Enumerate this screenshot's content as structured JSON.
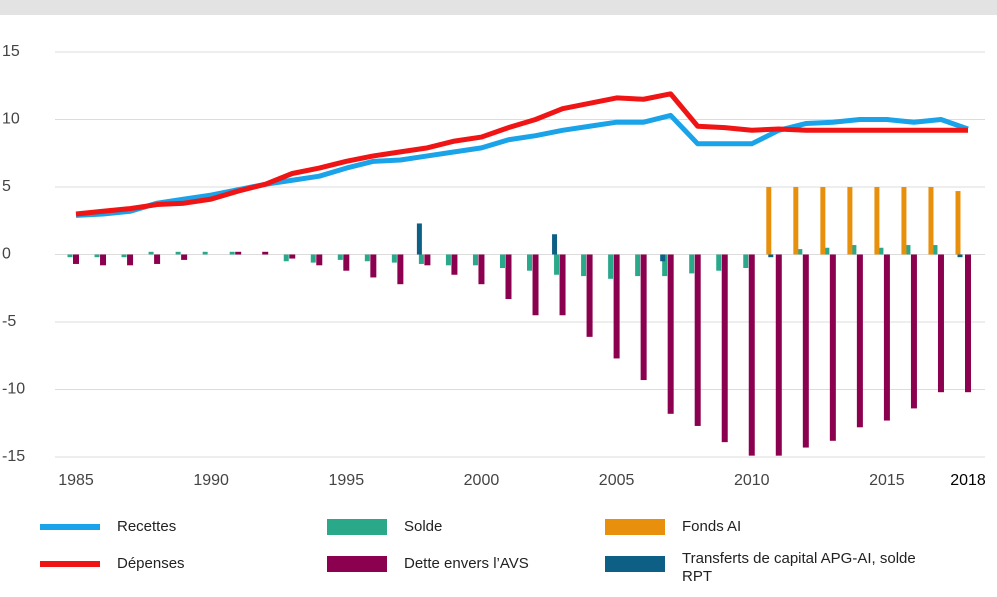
{
  "chart_data": {
    "type": "bar-line",
    "categories": [
      1985,
      1986,
      1987,
      1988,
      1989,
      1990,
      1991,
      1992,
      1993,
      1994,
      1995,
      1996,
      1997,
      1998,
      1999,
      2000,
      2001,
      2002,
      2003,
      2004,
      2005,
      2006,
      2007,
      2008,
      2009,
      2010,
      2011,
      2012,
      2013,
      2014,
      2015,
      2016,
      2017,
      2018
    ],
    "xlim": [
      1985,
      2018
    ],
    "xticks": [
      1985,
      1990,
      1995,
      2000,
      2005,
      2010,
      2015,
      2018
    ],
    "ylim": [
      -15,
      15
    ],
    "yticks": [
      -15,
      -10,
      -5,
      0,
      5,
      10,
      15
    ],
    "grid": true,
    "legend": "bottom",
    "series": [
      {
        "name": "Recettes",
        "kind": "line",
        "color": "#1aa3e8",
        "values": [
          2.9,
          3.0,
          3.2,
          3.8,
          4.1,
          4.4,
          4.8,
          5.2,
          5.5,
          5.8,
          6.4,
          6.9,
          7.0,
          7.3,
          7.6,
          7.9,
          8.5,
          8.8,
          9.2,
          9.5,
          9.8,
          9.8,
          10.3,
          8.2,
          8.2,
          8.2,
          9.2,
          9.7,
          9.8,
          10.0,
          10.0,
          9.8,
          10.0,
          9.3
        ]
      },
      {
        "name": "Dépenses",
        "kind": "line",
        "color": "#f01414",
        "values": [
          3.0,
          3.2,
          3.4,
          3.7,
          3.8,
          4.1,
          4.7,
          5.2,
          6.0,
          6.4,
          6.9,
          7.3,
          7.6,
          7.9,
          8.4,
          8.7,
          9.4,
          10.0,
          10.8,
          11.2,
          11.6,
          11.5,
          11.9,
          9.5,
          9.4,
          9.2,
          9.3,
          9.2,
          9.2,
          9.2,
          9.2,
          9.2,
          9.2,
          9.2
        ]
      },
      {
        "name": "Solde",
        "kind": "bar",
        "color": "#2aa88a",
        "values": [
          -0.2,
          -0.2,
          -0.2,
          0.2,
          0.2,
          0.2,
          0.2,
          0,
          -0.5,
          -0.6,
          -0.4,
          -0.5,
          -0.6,
          -0.7,
          -0.8,
          -0.8,
          -1.0,
          -1.2,
          -1.5,
          -1.6,
          -1.8,
          -1.6,
          -1.6,
          -1.4,
          -1.2,
          -1.0,
          0,
          0.4,
          0.5,
          0.7,
          0.5,
          0.7,
          0.7,
          0
        ]
      },
      {
        "name": "Dette envers l’AVS",
        "kind": "bar",
        "color": "#8c0050",
        "values": [
          -0.7,
          -0.8,
          -0.8,
          -0.7,
          -0.4,
          0,
          0.2,
          0.2,
          -0.3,
          -0.8,
          -1.2,
          -1.7,
          -2.2,
          -0.8,
          -1.5,
          -2.2,
          -3.3,
          -4.5,
          -4.5,
          -6.1,
          -7.7,
          -9.3,
          -11.8,
          -12.7,
          -13.9,
          -14.9,
          -14.9,
          -14.3,
          -13.8,
          -12.8,
          -12.3,
          -11.4,
          -10.2,
          -10.2
        ]
      },
      {
        "name": "Fonds AI",
        "kind": "bar",
        "color": "#e8900c",
        "values": [
          null,
          null,
          null,
          null,
          null,
          null,
          null,
          null,
          null,
          null,
          null,
          null,
          null,
          null,
          null,
          null,
          null,
          null,
          null,
          null,
          null,
          null,
          null,
          null,
          null,
          null,
          5,
          5,
          5,
          5,
          5,
          5,
          5,
          4.7
        ]
      },
      {
        "name": "Transferts de capital APG-AI, solde RPT",
        "kind": "bar",
        "color": "#0e5f86",
        "values": [
          null,
          null,
          null,
          null,
          null,
          null,
          null,
          null,
          null,
          null,
          null,
          null,
          null,
          2.3,
          null,
          null,
          null,
          null,
          1.5,
          null,
          null,
          null,
          -0.5,
          null,
          null,
          null,
          -0.2,
          null,
          null,
          null,
          null,
          null,
          null,
          -0.2
        ]
      }
    ]
  }
}
